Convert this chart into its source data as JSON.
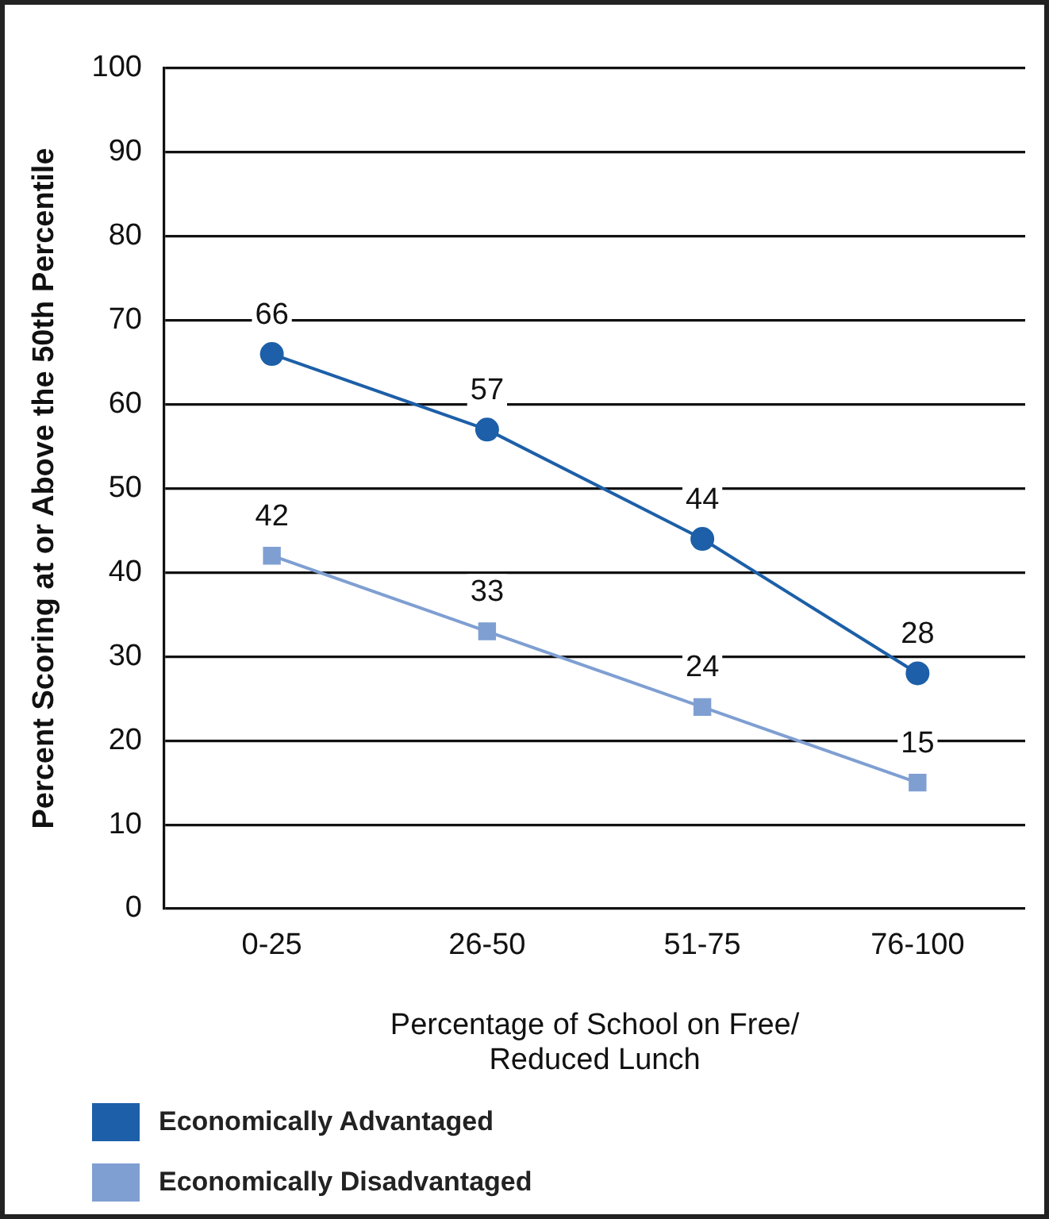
{
  "chart_data": {
    "type": "line",
    "xlabel": "Percentage of School on Free/ Reduced Lunch",
    "ylabel": "Percent Scoring at or Above the 50th Percentile",
    "categories": [
      "0-25",
      "26-50",
      "51-75",
      "76-100"
    ],
    "series": [
      {
        "name": "Economically Advantaged",
        "color": "#1d5fa8",
        "marker": "circle",
        "values": [
          66,
          57,
          44,
          28
        ]
      },
      {
        "name": "Economically Disadvantaged",
        "color": "#7f9fd2",
        "marker": "square",
        "values": [
          42,
          33,
          24,
          15
        ]
      }
    ],
    "ylim": [
      0,
      100
    ],
    "yticks": [
      0,
      10,
      20,
      30,
      40,
      50,
      60,
      70,
      80,
      90,
      100
    ],
    "grid": "y",
    "legend": "bottom left",
    "data_labels": true,
    "line_style": "solid"
  }
}
